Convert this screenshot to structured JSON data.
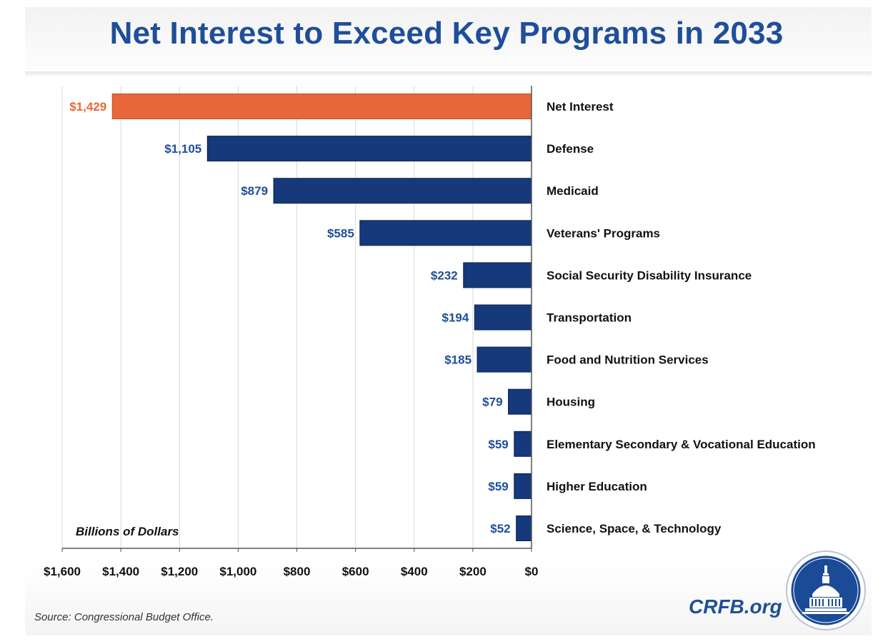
{
  "title": "Net Interest to Exceed Key Programs in 2033",
  "source": "Source: Congressional Budget Office.",
  "brand": "CRFB.org",
  "colors": {
    "highlight": "#e8673a",
    "bar": "#15397a",
    "title": "#1f4e9a",
    "grid": "#d9d9d9"
  },
  "chart_data": {
    "type": "bar",
    "orientation": "horizontal",
    "axis_direction": "reversed",
    "unit_label": "Billions of Dollars",
    "categories": [
      "Net Interest",
      "Defense",
      "Medicaid",
      "Veterans' Programs",
      "Social Security Disability Insurance",
      "Transportation",
      "Food and Nutrition Services",
      "Housing",
      "Elementary Secondary & Vocational Education",
      "Higher Education",
      "Science, Space, & Technology"
    ],
    "values": [
      1429,
      1105,
      879,
      585,
      232,
      194,
      185,
      79,
      59,
      59,
      52
    ],
    "value_labels": [
      "$1,429",
      "$1,105",
      "$879",
      "$585",
      "$232",
      "$194",
      "$185",
      "$79",
      "$59",
      "$59",
      "$52"
    ],
    "highlight_index": 0,
    "xlim": [
      0,
      1600
    ],
    "ticks": [
      1600,
      1400,
      1200,
      1000,
      800,
      600,
      400,
      200,
      0
    ],
    "tick_labels": [
      "$1,600",
      "$1,400",
      "$1,200",
      "$1,000",
      "$800",
      "$600",
      "$400",
      "$200",
      "$0"
    ],
    "grid": true,
    "legend": "none"
  }
}
